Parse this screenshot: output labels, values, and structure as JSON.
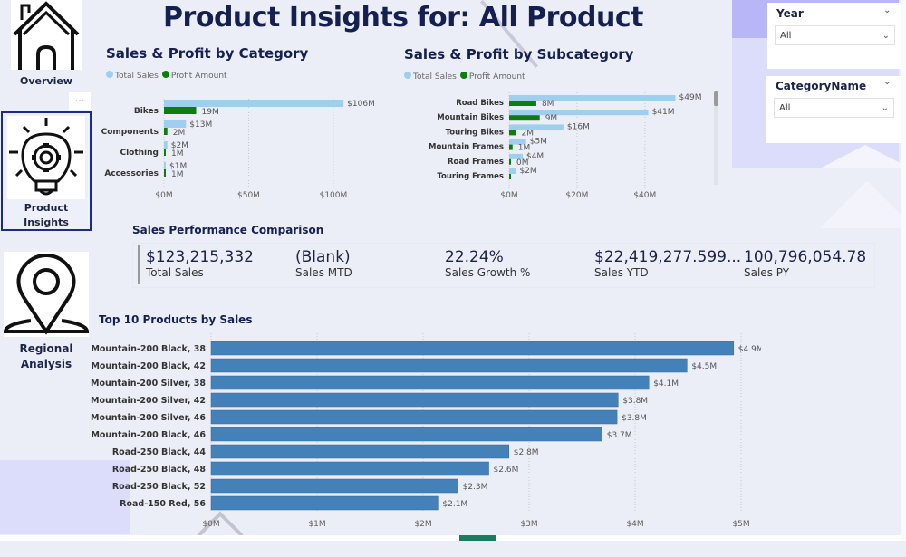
{
  "page_title": "Product Insights for: All Product",
  "nav": {
    "items": [
      {
        "label": "Overview",
        "icon": "house-icon",
        "active": false
      },
      {
        "label": "Product Insights",
        "icon": "lightbulb-gear-icon",
        "active": true
      },
      {
        "label": "Regional Analysis",
        "icon": "location-pin-icon",
        "active": false
      }
    ],
    "more_label": "...",
    "regional_line1": "Regional",
    "regional_line2": "Analysis",
    "product_line1": "Product",
    "product_line2": "Insights"
  },
  "slicers": {
    "year": {
      "title": "Year",
      "value": "All"
    },
    "category": {
      "title": "CategoryName",
      "value": "All"
    }
  },
  "colors": {
    "total_sales": "#9fcfec",
    "profit": "#107c10",
    "top10_bar": "#4481b8",
    "title": "#142050"
  },
  "kpi": {
    "title": "Sales Performance Comparison",
    "cards": [
      {
        "value": "$123,215,332",
        "label": "Total Sales"
      },
      {
        "value": "(Blank)",
        "label": "Sales MTD"
      },
      {
        "value": "22.24%",
        "label": "Sales Growth %"
      },
      {
        "value": "$22,419,277.599...",
        "label": "Sales YTD"
      },
      {
        "value": "100,796,054.78",
        "label": "Sales PY"
      }
    ]
  },
  "chart_data": [
    {
      "type": "bar",
      "title": "Sales & Profit by Category",
      "legend": [
        "Total Sales",
        "Profit Amount"
      ],
      "legend_position": "top-left",
      "categories": [
        "Bikes",
        "Components",
        "Clothing",
        "Accessories"
      ],
      "series": [
        {
          "name": "Total Sales",
          "values": [
            106,
            13,
            2,
            1
          ],
          "labels": [
            "$106M",
            "$13M",
            "$2M",
            "$1M"
          ]
        },
        {
          "name": "Profit Amount",
          "values": [
            19,
            2,
            0.5,
            0.5
          ],
          "labels": [
            "19M",
            "2M",
            "1M",
            "1M"
          ]
        }
      ],
      "xticks": [
        "$0M",
        "$50M",
        "$100M"
      ],
      "xtick_values": [
        0,
        50,
        100
      ],
      "xlim": [
        0,
        115
      ],
      "grid": true
    },
    {
      "type": "bar",
      "title": "Sales & Profit by Subcategory",
      "legend": [
        "Total Sales",
        "Profit Amount"
      ],
      "legend_position": "top-left",
      "categories": [
        "Road Bikes",
        "Mountain Bikes",
        "Touring Bikes",
        "Mountain Frames",
        "Road Frames",
        "Touring Frames"
      ],
      "series": [
        {
          "name": "Total Sales",
          "values": [
            49,
            41,
            16,
            5,
            4,
            2
          ],
          "labels": [
            "$49M",
            "$41M",
            "$16M",
            "$5M",
            "$4M",
            "$2M"
          ]
        },
        {
          "name": "Profit Amount",
          "values": [
            8,
            9,
            2,
            1,
            0.2,
            0.2
          ],
          "labels": [
            "8M",
            "9M",
            "2M",
            "1M",
            "0M",
            ""
          ]
        }
      ],
      "xticks": [
        "$0M",
        "$20M",
        "$40M"
      ],
      "xtick_values": [
        0,
        20,
        40
      ],
      "xlim": [
        0,
        55
      ],
      "grid": true
    },
    {
      "type": "bar",
      "title": "Top 10 Products by Sales",
      "categories": [
        "Mountain-200 Black, 38",
        "Mountain-200 Black, 42",
        "Mountain-200 Silver, 38",
        "Mountain-200 Silver, 42",
        "Mountain-200 Silver, 46",
        "Mountain-200 Black, 46",
        "Road-250 Black, 44",
        "Road-250 Black, 48",
        "Road-250 Black, 52",
        "Road-150 Red, 56"
      ],
      "values": [
        4.93,
        4.49,
        4.13,
        3.84,
        3.83,
        3.69,
        2.81,
        2.62,
        2.33,
        2.14
      ],
      "labels": [
        "$4.9M",
        "$4.5M",
        "$4.1M",
        "$3.8M",
        "$3.8M",
        "$3.7M",
        "$2.8M",
        "$2.6M",
        "$2.3M",
        "$2.1M"
      ],
      "xticks": [
        "$0M",
        "$1M",
        "$2M",
        "$3M",
        "$4M",
        "$5M"
      ],
      "xtick_values": [
        0,
        1,
        2,
        3,
        4,
        5
      ],
      "xlim": [
        0,
        5.2
      ],
      "grid": true
    }
  ]
}
